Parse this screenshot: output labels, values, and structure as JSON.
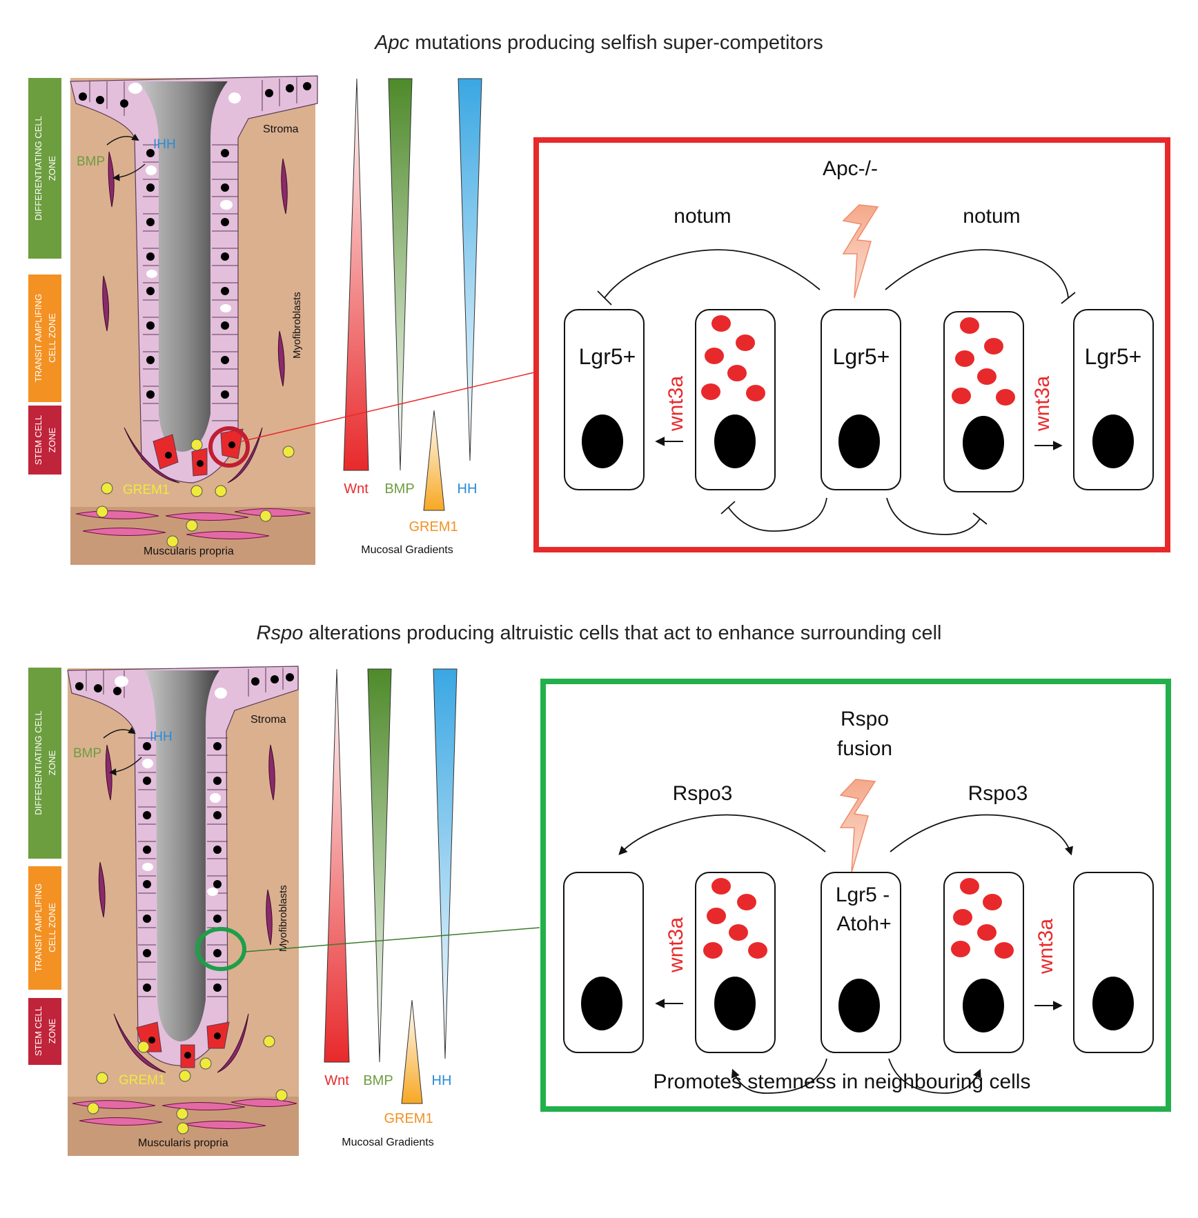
{
  "panels": [
    {
      "title_italic": "Apc",
      "title_rest": " mutations producing selfish super-competitors",
      "zones": [
        "DIFFERENTIATING CELL ZONE",
        "TRANSIT AMPLIFING CELL ZONE",
        "STEM CELL ZONE"
      ],
      "crypt_labels": {
        "stroma": "Stroma",
        "myofibroblasts": "Myofibroblasts",
        "ihh": "IHH",
        "bmp": "BMP",
        "grem1": "GREM1",
        "muscularis": "Muscularis propria"
      },
      "gradients": {
        "wnt": "Wnt",
        "bmp": "BMP",
        "hh": "HH",
        "grem1": "GREM1",
        "caption": "Mucosal Gradients"
      },
      "box": {
        "header": "Apc-/-",
        "arrow_left": "notum",
        "arrow_right": "notum",
        "cells": [
          "Lgr5+",
          "",
          "Lgr5+",
          "",
          "Lgr5+"
        ],
        "signal_left": "wnt3a",
        "signal_right": "wnt3a",
        "footer": ""
      },
      "colors": {
        "box": "#e8292b"
      }
    },
    {
      "title_italic": "Rspo",
      "title_rest": " alterations producing altruistic cells  that act to enhance surrounding cell",
      "zones": [
        "DIFFERENTIATING CELL ZONE",
        "TRANSIT AMPLIFING CELL ZONE",
        "STEM CELL ZONE"
      ],
      "crypt_labels": {
        "stroma": "Stroma",
        "myofibroblasts": "Myofibroblasts",
        "ihh": "IHH",
        "bmp": "BMP",
        "grem1": "GREM1",
        "muscularis": "Muscularis propria"
      },
      "gradients": {
        "wnt": "Wnt",
        "bmp": "BMP",
        "hh": "HH",
        "grem1": "GREM1",
        "caption": "Mucosal Gradients"
      },
      "box": {
        "header_line1": "Rspo",
        "header_line2": "fusion",
        "arrow_left": "Rspo3",
        "arrow_right": "Rspo3",
        "center_line1": "Lgr5 -",
        "center_line2": "Atoh+",
        "signal_left": "wnt3a",
        "signal_right": "wnt3a",
        "footer": "Promotes stemness in neighbouring cells"
      },
      "colors": {
        "box": "#22b04b"
      }
    }
  ],
  "colors": {
    "stroma": "#dbb08f",
    "muscularis": "#c99a78",
    "epithelium": "#e3bfdc",
    "stem_cell": "#e8292b",
    "zone_differentiating": "#6c9e3f",
    "zone_transit": "#f39123",
    "zone_stem": "#c0243a",
    "wnt_label": "#e8292b",
    "bmp_label": "#6c9e3f",
    "hh_label": "#2a8ad6",
    "grem1_label": "#f39123",
    "grem1_dot": "#f0ea3a",
    "granule": "#e8292b"
  }
}
